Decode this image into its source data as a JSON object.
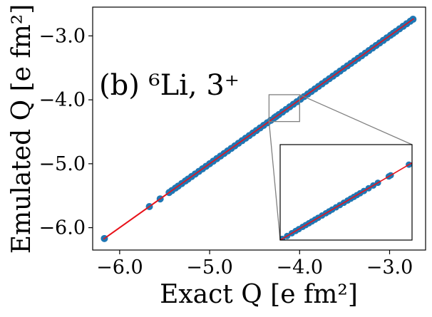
{
  "chart_data": {
    "type": "scatter",
    "panel_label": "(b) ⁶Li, 3⁺",
    "xlabel": "Exact Q [e fm²]",
    "ylabel": "Emulated Q [e fm²]",
    "xlim": [
      -6.3,
      -2.6
    ],
    "ylim": [
      -6.35,
      -2.55
    ],
    "xticks": [
      -6.0,
      -5.0,
      -4.0,
      -3.0
    ],
    "yticks": [
      -6.0,
      -5.0,
      -4.0,
      -3.0
    ],
    "xtick_labels": [
      "−6.0",
      "−5.0",
      "−4.0",
      "−3.0"
    ],
    "ytick_labels": [
      "−6.0",
      "−5.0",
      "−4.0",
      "−3.0"
    ],
    "grid": false,
    "legend": "none",
    "colors": {
      "points": "#1f77b4",
      "line": "#e8121a",
      "inset_frame": "#808080"
    },
    "identity_line": {
      "x": [
        -6.18,
        -2.73
      ],
      "y": [
        -6.18,
        -2.73
      ]
    },
    "points": {
      "x": [
        -6.17,
        -5.67,
        -5.55,
        -5.45,
        -5.42,
        -5.38,
        -5.35,
        -5.31,
        -5.27,
        -5.24,
        -5.2,
        -5.16,
        -5.12,
        -5.08,
        -5.04,
        -5.0,
        -4.96,
        -4.92,
        -4.88,
        -4.84,
        -4.8,
        -4.76,
        -4.72,
        -4.68,
        -4.64,
        -4.6,
        -4.56,
        -4.52,
        -4.48,
        -4.44,
        -4.4,
        -4.36,
        -4.32,
        -4.28,
        -4.26,
        -4.23,
        -4.19,
        -4.15,
        -4.11,
        -4.07,
        -4.03,
        -3.99,
        -3.95,
        -3.91,
        -3.87,
        -3.83,
        -3.79,
        -3.75,
        -3.71,
        -3.67,
        -3.63,
        -3.59,
        -3.55,
        -3.51,
        -3.47,
        -3.43,
        -3.39,
        -3.35,
        -3.31,
        -3.27,
        -3.23,
        -3.19,
        -3.15,
        -3.11,
        -3.07,
        -3.03,
        -2.99,
        -2.96,
        -2.93,
        -2.89,
        -2.85,
        -2.81,
        -2.77,
        -2.74
      ],
      "y": [
        -6.17,
        -5.67,
        -5.55,
        -5.45,
        -5.42,
        -5.38,
        -5.35,
        -5.31,
        -5.27,
        -5.24,
        -5.2,
        -5.16,
        -5.12,
        -5.08,
        -5.04,
        -5.0,
        -4.96,
        -4.92,
        -4.88,
        -4.84,
        -4.8,
        -4.76,
        -4.72,
        -4.68,
        -4.64,
        -4.6,
        -4.56,
        -4.52,
        -4.48,
        -4.44,
        -4.4,
        -4.36,
        -4.32,
        -4.28,
        -4.26,
        -4.23,
        -4.19,
        -4.15,
        -4.11,
        -4.07,
        -4.03,
        -3.99,
        -3.95,
        -3.91,
        -3.87,
        -3.83,
        -3.79,
        -3.75,
        -3.71,
        -3.67,
        -3.63,
        -3.59,
        -3.55,
        -3.51,
        -3.47,
        -3.43,
        -3.39,
        -3.35,
        -3.31,
        -3.27,
        -3.23,
        -3.19,
        -3.15,
        -3.11,
        -3.07,
        -3.03,
        -2.99,
        -2.96,
        -2.93,
        -2.89,
        -2.85,
        -2.81,
        -2.77,
        -2.74
      ]
    },
    "inset": {
      "xlim": [
        -4.34,
        -4.0
      ],
      "ylim": [
        -4.34,
        -3.92
      ],
      "points": {
        "x": [
          -4.335,
          -4.322,
          -4.31,
          -4.3,
          -4.292,
          -4.282,
          -4.274,
          -4.266,
          -4.258,
          -4.25,
          -4.242,
          -4.232,
          -4.222,
          -4.214,
          -4.206,
          -4.196,
          -4.186,
          -4.176,
          -4.166,
          -4.158,
          -4.15,
          -4.142,
          -4.134,
          -4.124,
          -4.112,
          -4.1,
          -4.088,
          -4.06,
          -4.055,
          -4.008
        ],
        "y": [
          -4.335,
          -4.322,
          -4.31,
          -4.3,
          -4.292,
          -4.282,
          -4.274,
          -4.266,
          -4.258,
          -4.25,
          -4.242,
          -4.232,
          -4.222,
          -4.214,
          -4.206,
          -4.196,
          -4.186,
          -4.176,
          -4.166,
          -4.158,
          -4.15,
          -4.142,
          -4.134,
          -4.124,
          -4.112,
          -4.1,
          -4.088,
          -4.06,
          -4.055,
          -4.008
        ]
      }
    }
  }
}
